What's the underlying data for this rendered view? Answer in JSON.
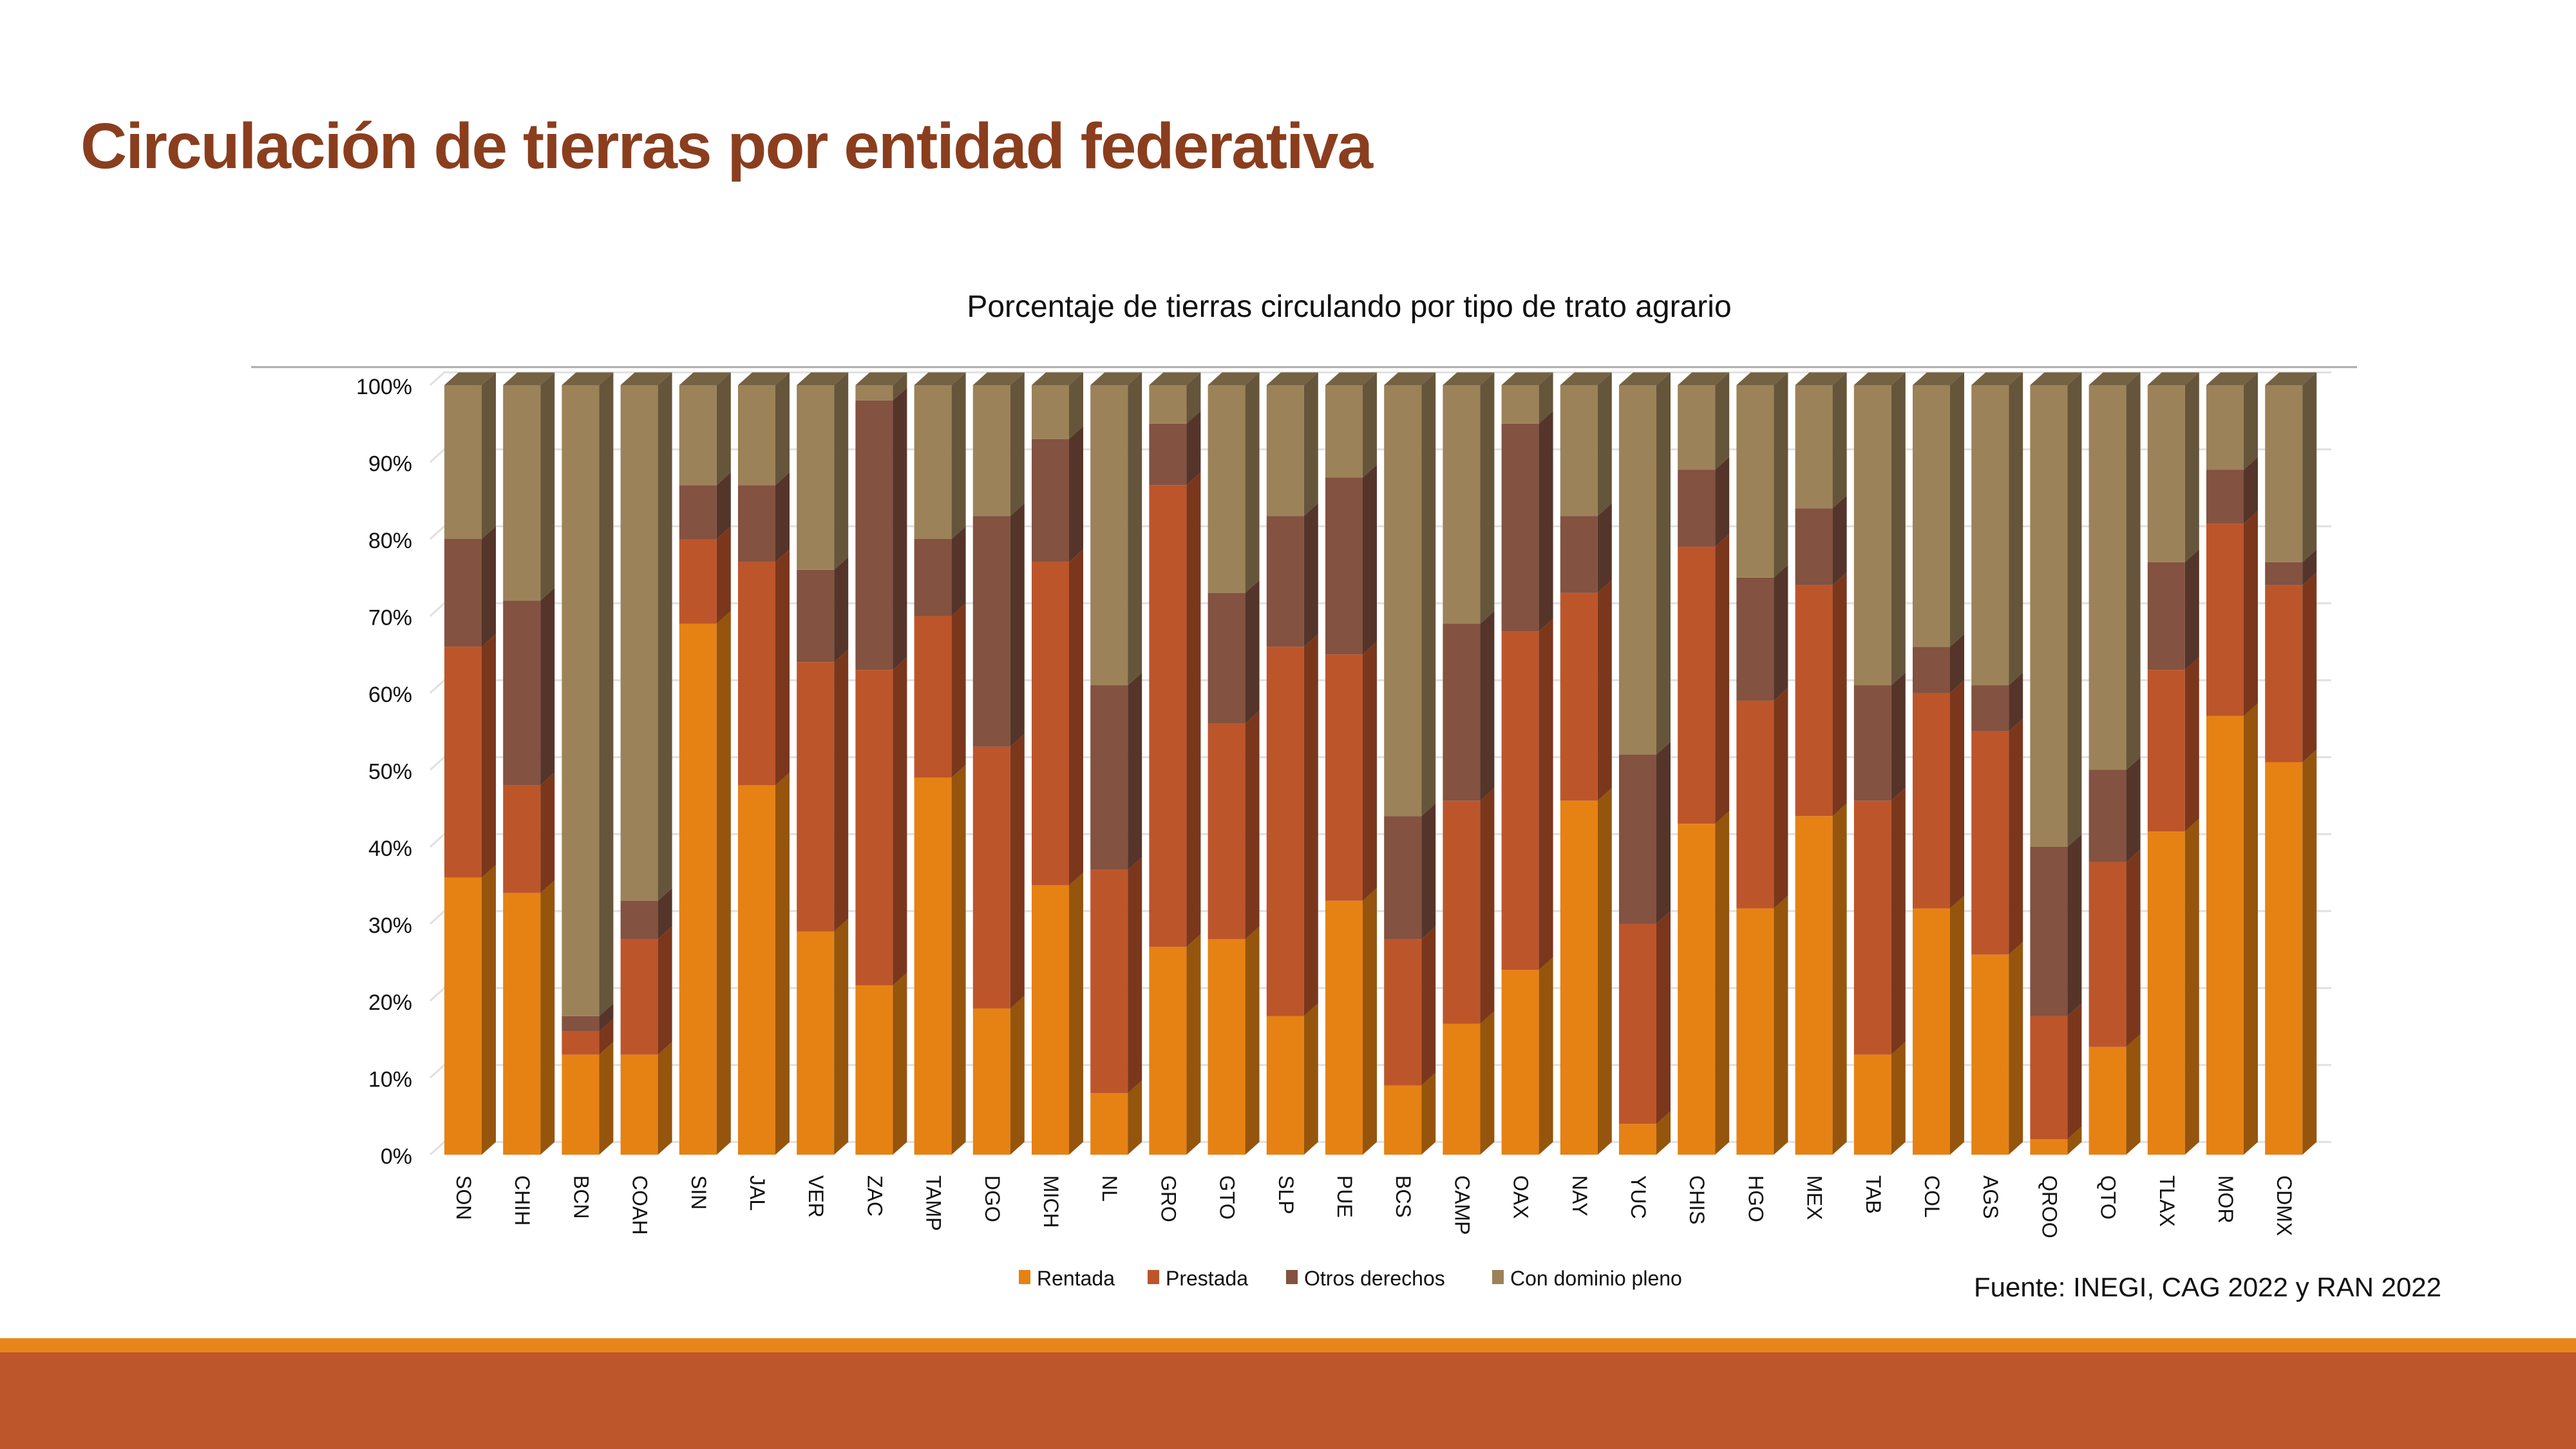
{
  "slide": {
    "title": "Circulación de tierras por entidad federativa",
    "source": "Fuente: INEGI, CAG 2022 y RAN 2022"
  },
  "colors": {
    "title": "#8a3e1e",
    "band_top": "#e8861a",
    "band_bottom": "#bd562b"
  },
  "chart_data": {
    "type": "bar",
    "stacked": "percent",
    "title": "Porcentaje de tierras circulando por tipo de trato agrario",
    "xlabel": "",
    "ylabel": "",
    "ylim": [
      0,
      100
    ],
    "y_ticks": [
      "0%",
      "10%",
      "20%",
      "30%",
      "40%",
      "50%",
      "60%",
      "70%",
      "80%",
      "90%",
      "100%"
    ],
    "grid": true,
    "legend_position": "bottom",
    "categories": [
      "SON",
      "CHIH",
      "BCN",
      "COAH",
      "SIN",
      "JAL",
      "VER",
      "ZAC",
      "TAMP",
      "DGO",
      "MICH",
      "NL",
      "GRO",
      "GTO",
      "SLP",
      "PUE",
      "BCS",
      "CAMP",
      "OAX",
      "NAY",
      "YUC",
      "CHIS",
      "HGO",
      "MEX",
      "TAB",
      "COL",
      "AGS",
      "QROO",
      "QTO",
      "TLAX",
      "MOR",
      "CDMX"
    ],
    "series": [
      {
        "name": "Rentada",
        "color": "#e68214",
        "values": [
          36,
          34,
          13,
          13,
          69,
          48,
          29,
          22,
          49,
          19,
          35,
          8,
          27,
          28,
          18,
          33,
          9,
          17,
          24,
          46,
          4,
          43,
          32,
          44,
          13,
          32,
          26,
          2,
          14,
          42,
          57,
          51
        ]
      },
      {
        "name": "Prestada",
        "color": "#bd552b",
        "values": [
          30,
          14,
          3,
          15,
          11,
          29,
          35,
          41,
          21,
          34,
          42,
          29,
          60,
          28,
          48,
          32,
          19,
          29,
          44,
          27,
          26,
          36,
          27,
          30,
          33,
          28,
          29,
          16,
          24,
          21,
          25,
          23
        ]
      },
      {
        "name": "Otros derechos",
        "color": "#835240",
        "values": [
          14,
          24,
          2,
          5,
          7,
          10,
          12,
          35,
          10,
          30,
          16,
          24,
          8,
          17,
          17,
          23,
          16,
          23,
          27,
          10,
          22,
          10,
          16,
          10,
          15,
          6,
          6,
          22,
          12,
          14,
          7,
          3
        ]
      },
      {
        "name": "Con dominio pleno",
        "color": "#9c8259",
        "values": [
          20,
          28,
          82,
          67,
          13,
          13,
          24,
          2,
          20,
          17,
          7,
          39,
          5,
          27,
          17,
          12,
          56,
          31,
          5,
          17,
          48,
          11,
          25,
          16,
          39,
          34,
          39,
          60,
          50,
          23,
          11,
          23
        ]
      }
    ]
  }
}
